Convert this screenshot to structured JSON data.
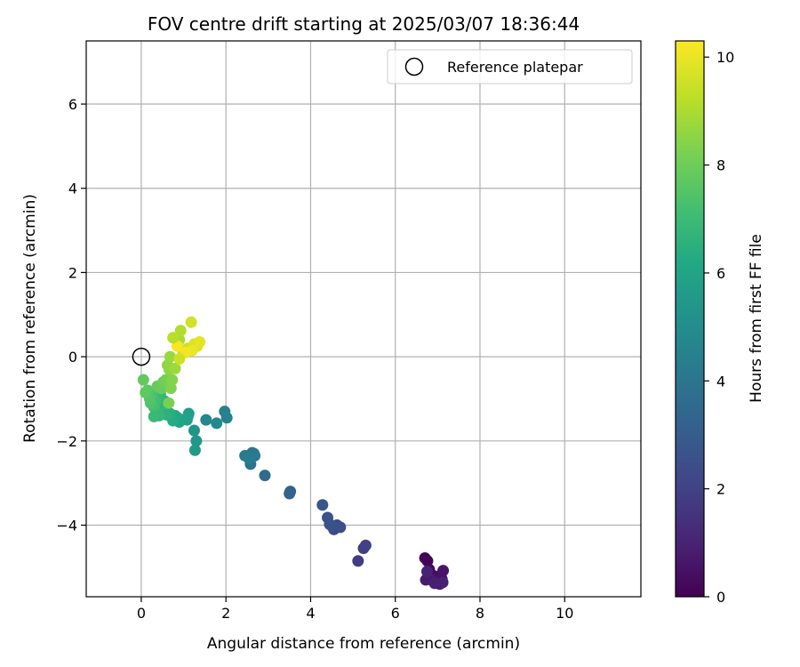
{
  "chart_data": {
    "type": "scatter",
    "title": "FOV centre drift starting at 2025/03/07 18:36:44",
    "xlabel": "Angular distance from reference (arcmin)",
    "ylabel": "Rotation from reference (arcmin)",
    "xlim": [
      -1.3,
      11.8
    ],
    "ylim": [
      -5.7,
      7.5
    ],
    "xticks": [
      0,
      2,
      4,
      6,
      8,
      10
    ],
    "yticks": [
      -4,
      -2,
      0,
      2,
      4,
      6
    ],
    "grid": true,
    "legend": {
      "placement": "top-right",
      "entries": [
        "Reference platepar"
      ]
    },
    "reference_point": {
      "x": 0,
      "y": 0,
      "marker": "hollow-circle"
    },
    "colorbar": {
      "label": "Hours from first FF file",
      "range": [
        0,
        10.3
      ],
      "ticks": [
        0,
        2,
        4,
        6,
        8,
        10
      ],
      "colormap": "viridis"
    },
    "series": [
      {
        "x": [
          6.7,
          6.76,
          6.8,
          6.9,
          7.0,
          7.1,
          7.13,
          6.95,
          6.85,
          6.72,
          7.05,
          6.93,
          7.12,
          6.75,
          5.12,
          5.25,
          5.3,
          4.55,
          4.62,
          4.7,
          4.45,
          4.5,
          4.4,
          4.28,
          3.52,
          3.5,
          2.92,
          2.58,
          2.62,
          2.66,
          2.68,
          2.45,
          2.55,
          1.97,
          2.02,
          1.53,
          1.78,
          1.25,
          1.3,
          1.27,
          1.12,
          1.1,
          1.08,
          0.9,
          0.86,
          0.8,
          0.75,
          0.68,
          0.6,
          0.55,
          0.5,
          0.45,
          0.4,
          0.35,
          0.33,
          0.3,
          0.25,
          0.22,
          0.2,
          0.15,
          0.1,
          0.05,
          0.38,
          0.42,
          0.3,
          0.48,
          0.52,
          0.58,
          0.65,
          0.7,
          0.73,
          0.66,
          0.62,
          0.68,
          0.8,
          0.84,
          0.9,
          0.93,
          0.98,
          1.02,
          1.1,
          1.18,
          1.25,
          1.32,
          1.38,
          1.2,
          1.05,
          0.85,
          0.75,
          0.9
        ],
        "y": [
          -4.78,
          -4.85,
          -5.05,
          -5.2,
          -5.22,
          -5.28,
          -5.08,
          -5.35,
          -5.3,
          -5.3,
          -5.4,
          -5.38,
          -5.36,
          -5.1,
          -4.85,
          -4.55,
          -4.48,
          -4.1,
          -4.0,
          -4.05,
          -3.98,
          -4.02,
          -3.82,
          -3.52,
          -3.2,
          -3.25,
          -2.82,
          -2.55,
          -2.28,
          -2.3,
          -2.35,
          -2.35,
          -2.42,
          -1.3,
          -1.45,
          -1.5,
          -1.58,
          -1.75,
          -2.0,
          -2.22,
          -1.35,
          -1.42,
          -1.5,
          -1.55,
          -1.45,
          -1.4,
          -1.52,
          -1.35,
          -1.38,
          -1.05,
          -1.15,
          -0.88,
          -0.95,
          -0.8,
          -1.05,
          -1.2,
          -0.9,
          -1.1,
          -1.0,
          -0.8,
          -0.85,
          -0.55,
          -0.7,
          -1.4,
          -1.42,
          -0.75,
          -0.6,
          -0.55,
          -1.1,
          -0.75,
          -0.55,
          -0.3,
          -0.2,
          0.0,
          -0.28,
          0.45,
          0.4,
          0.62,
          0.15,
          0.12,
          0.2,
          0.82,
          0.3,
          0.25,
          0.35,
          0.15,
          0.1,
          0.25,
          0.45,
          -0.05
        ],
        "hours": [
          0.05,
          0.1,
          0.2,
          0.3,
          0.4,
          0.5,
          0.6,
          0.7,
          0.75,
          0.8,
          0.85,
          0.9,
          0.95,
          1.0,
          1.8,
          1.9,
          2.0,
          2.2,
          2.3,
          2.4,
          2.5,
          2.55,
          2.6,
          2.7,
          3.2,
          3.3,
          3.6,
          3.9,
          4.0,
          4.1,
          4.15,
          4.2,
          4.25,
          4.5,
          4.55,
          4.7,
          4.8,
          5.3,
          5.4,
          5.5,
          5.7,
          5.8,
          5.9,
          6.0,
          6.1,
          6.2,
          6.3,
          6.4,
          6.5,
          6.6,
          6.7,
          6.8,
          6.9,
          7.0,
          7.1,
          7.2,
          7.3,
          7.4,
          7.5,
          7.6,
          7.7,
          7.8,
          7.85,
          6.8,
          6.9,
          7.9,
          8.0,
          8.1,
          8.2,
          8.3,
          8.4,
          8.5,
          8.6,
          8.7,
          8.8,
          8.9,
          9.0,
          9.1,
          9.3,
          9.4,
          9.5,
          9.6,
          9.7,
          9.8,
          9.9,
          10.0,
          10.1,
          10.2,
          9.2,
          9.5
        ]
      }
    ]
  }
}
